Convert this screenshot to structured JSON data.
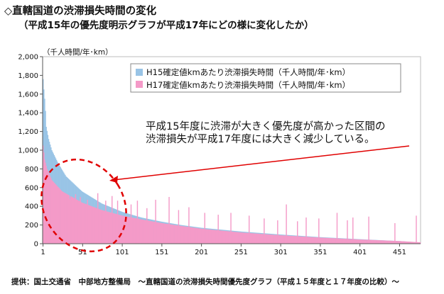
{
  "header": {
    "title": "◇直轄国道の渋滞損失時間の変化",
    "subtitle": "（平成15年の優先度明示グラフが平成17年にどの様に変化したか）"
  },
  "footer": {
    "source": "提供：国土交通省　中部地方整備局　～直轄国道の渋滞損失時間優先度グラフ（平成１５年度と１７年度の比較）～"
  },
  "chart_data": {
    "type": "bar",
    "title": "◇直轄国道の渋滞損失時間の変化",
    "subtitle": "（平成15年の優先度明示グラフが平成17年にどの様に変化したか）",
    "ylabel": "（千人時間/年･km）",
    "xlabel": "",
    "ylim": [
      0,
      2000
    ],
    "xlim": [
      1,
      477
    ],
    "yticks": [
      "0",
      "200",
      "400",
      "600",
      "800",
      "1,000",
      "1,200",
      "1,400",
      "1,600",
      "1,800",
      "2,000"
    ],
    "xticks": [
      "1",
      "51",
      "101",
      "151",
      "201",
      "251",
      "301",
      "351",
      "401",
      "451"
    ],
    "grid": false,
    "legend_position": "top-right",
    "series": [
      {
        "name": "H15確定値kmあたり渋滞損失時間（千人時間/年･km）",
        "color": "#99c4e6",
        "profile": [
          [
            1,
            1760
          ],
          [
            2,
            1650
          ],
          [
            3,
            1550
          ],
          [
            4,
            1420
          ],
          [
            5,
            1250
          ],
          [
            8,
            1120
          ],
          [
            12,
            1000
          ],
          [
            20,
            860
          ],
          [
            30,
            720
          ],
          [
            50,
            560
          ],
          [
            75,
            430
          ],
          [
            101,
            340
          ],
          [
            125,
            280
          ],
          [
            151,
            235
          ],
          [
            175,
            200
          ],
          [
            201,
            170
          ],
          [
            251,
            130
          ],
          [
            301,
            98
          ],
          [
            351,
            70
          ],
          [
            401,
            48
          ],
          [
            451,
            28
          ],
          [
            477,
            12
          ]
        ]
      },
      {
        "name": "H17確定値kmあたり渋滞損失時間（千人時間/年･km）",
        "color": "#f49ac8",
        "profile": [
          [
            1,
            1050
          ],
          [
            3,
            900
          ],
          [
            6,
            800
          ],
          [
            12,
            680
          ],
          [
            25,
            560
          ],
          [
            50,
            440
          ],
          [
            75,
            360
          ],
          [
            101,
            300
          ],
          [
            125,
            260
          ],
          [
            151,
            220
          ],
          [
            175,
            190
          ],
          [
            201,
            160
          ],
          [
            251,
            120
          ],
          [
            301,
            90
          ],
          [
            351,
            65
          ],
          [
            401,
            45
          ],
          [
            451,
            28
          ],
          [
            477,
            15
          ]
        ],
        "spikes": [
          [
            35,
            480
          ],
          [
            42,
            530
          ],
          [
            48,
            500
          ],
          [
            57,
            470
          ],
          [
            70,
            540
          ],
          [
            80,
            460
          ],
          [
            88,
            510
          ],
          [
            95,
            460
          ],
          [
            112,
            420
          ],
          [
            120,
            460
          ],
          [
            132,
            380
          ],
          [
            143,
            470
          ],
          [
            160,
            500
          ],
          [
            172,
            360
          ],
          [
            185,
            390
          ],
          [
            205,
            330
          ],
          [
            222,
            310
          ],
          [
            238,
            330
          ],
          [
            261,
            300
          ],
          [
            280,
            270
          ],
          [
            297,
            250
          ],
          [
            308,
            420
          ],
          [
            322,
            240
          ],
          [
            333,
            280
          ],
          [
            349,
            270
          ],
          [
            372,
            330
          ],
          [
            385,
            250
          ],
          [
            392,
            280
          ],
          [
            412,
            290
          ],
          [
            445,
            220
          ],
          [
            472,
            300
          ]
        ]
      }
    ],
    "annotation": {
      "lines": [
        "平成15年度に渋滞が大きく優先度が高かった区間の",
        "渋滞損失が平成17年度には大きく減少している。"
      ],
      "color": "#e00000"
    }
  }
}
